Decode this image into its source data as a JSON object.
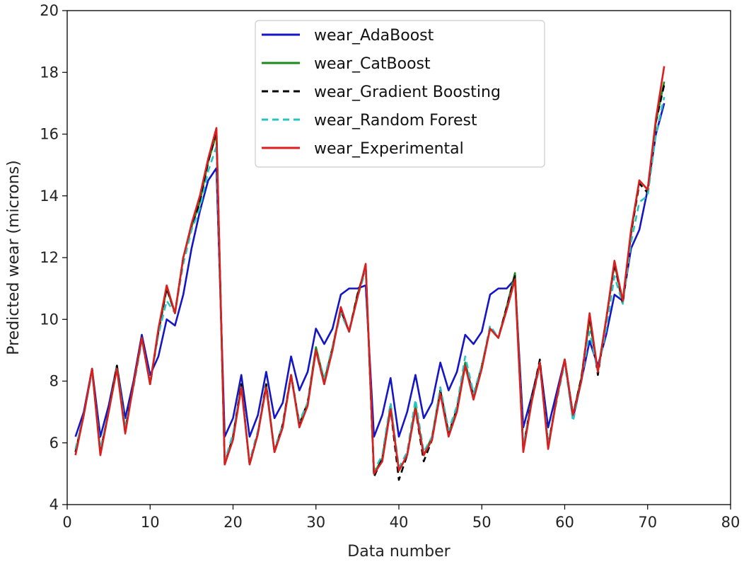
{
  "chart_data": {
    "type": "line",
    "title": "",
    "xlabel": "Data number",
    "ylabel": "Predicted wear (microns)",
    "xlim": [
      0,
      80
    ],
    "ylim": [
      4,
      20
    ],
    "xticks": [
      0,
      10,
      20,
      30,
      40,
      50,
      60,
      70,
      80
    ],
    "yticks": [
      4,
      6,
      8,
      10,
      12,
      14,
      16,
      18,
      20
    ],
    "grid": false,
    "legend_position": "top-center",
    "x": [
      1,
      2,
      3,
      4,
      5,
      6,
      7,
      8,
      9,
      10,
      11,
      12,
      13,
      14,
      15,
      16,
      17,
      18,
      19,
      20,
      21,
      22,
      23,
      24,
      25,
      26,
      27,
      28,
      29,
      30,
      31,
      32,
      33,
      34,
      35,
      36,
      37,
      38,
      39,
      40,
      41,
      42,
      43,
      44,
      45,
      46,
      47,
      48,
      49,
      50,
      51,
      52,
      53,
      54,
      55,
      56,
      57,
      58,
      59,
      60,
      61,
      62,
      63,
      64,
      65,
      66,
      67,
      68,
      69,
      70,
      71,
      72
    ],
    "series": [
      {
        "name": "wear_AdaBoost",
        "color": "#1414c8",
        "style": "solid",
        "values": [
          6.2,
          7.0,
          8.4,
          6.2,
          7.2,
          8.5,
          6.8,
          8.0,
          9.5,
          8.2,
          8.8,
          10.0,
          9.8,
          10.8,
          12.3,
          13.5,
          14.5,
          14.9,
          6.2,
          6.8,
          8.2,
          6.2,
          6.9,
          8.3,
          6.8,
          7.3,
          8.8,
          7.7,
          8.3,
          9.7,
          9.2,
          9.7,
          10.8,
          11.0,
          11.0,
          11.1,
          6.2,
          6.9,
          8.1,
          6.2,
          7.0,
          8.2,
          6.8,
          7.3,
          8.6,
          7.7,
          8.3,
          9.5,
          9.2,
          9.6,
          10.8,
          11.0,
          11.0,
          11.3,
          6.5,
          7.5,
          8.6,
          6.5,
          7.6,
          8.7,
          6.8,
          8.0,
          9.3,
          8.5,
          9.5,
          10.8,
          10.6,
          12.3,
          12.9,
          14.2,
          16.0,
          17.0
        ]
      },
      {
        "name": "wear_CatBoost",
        "color": "#1a8a1a",
        "style": "solid",
        "values": [
          5.7,
          6.9,
          8.4,
          5.7,
          7.0,
          8.5,
          6.4,
          7.9,
          9.4,
          7.9,
          9.6,
          11.0,
          10.2,
          12.0,
          13.0,
          13.8,
          15.1,
          16.0,
          5.3,
          6.2,
          7.9,
          5.3,
          6.3,
          7.9,
          5.7,
          6.6,
          8.2,
          6.6,
          7.3,
          9.1,
          8.0,
          9.1,
          10.3,
          9.6,
          10.8,
          11.7,
          5.0,
          5.5,
          7.2,
          5.1,
          5.6,
          7.2,
          5.6,
          6.2,
          7.7,
          6.3,
          7.1,
          8.6,
          7.5,
          8.5,
          9.7,
          9.4,
          10.4,
          11.5,
          5.8,
          7.4,
          8.6,
          5.9,
          7.4,
          8.7,
          6.9,
          8.1,
          10.0,
          8.3,
          10.0,
          11.8,
          10.6,
          12.8,
          14.5,
          14.2,
          16.4,
          17.7
        ]
      },
      {
        "name": "wear_Gradient Boosting",
        "color": "#000000",
        "style": "dashed",
        "values": [
          5.7,
          6.9,
          8.4,
          5.7,
          7.0,
          8.5,
          6.4,
          7.9,
          9.4,
          7.9,
          9.6,
          11.0,
          10.2,
          12.0,
          13.0,
          13.8,
          15.1,
          16.1,
          5.3,
          6.2,
          7.9,
          5.3,
          6.3,
          7.9,
          5.7,
          6.6,
          8.2,
          6.6,
          7.3,
          9.0,
          7.9,
          9.1,
          10.3,
          9.6,
          10.8,
          11.7,
          4.9,
          5.5,
          7.1,
          4.8,
          5.6,
          7.1,
          5.4,
          6.1,
          7.7,
          6.3,
          7.1,
          8.5,
          7.5,
          8.5,
          9.7,
          9.4,
          10.4,
          11.4,
          5.8,
          7.4,
          8.7,
          5.9,
          7.4,
          8.7,
          6.9,
          8.1,
          10.1,
          8.2,
          10.0,
          11.8,
          10.5,
          12.8,
          14.4,
          14.1,
          16.4,
          17.6
        ]
      },
      {
        "name": "wear_Random Forest",
        "color": "#2ac3c3",
        "style": "dashed",
        "values": [
          5.8,
          6.9,
          8.3,
          5.8,
          7.0,
          8.4,
          6.5,
          7.8,
          9.3,
          8.0,
          9.5,
          10.6,
          10.2,
          11.8,
          12.9,
          13.6,
          14.8,
          15.6,
          5.4,
          6.3,
          7.8,
          5.4,
          6.4,
          7.8,
          5.8,
          6.6,
          8.1,
          6.7,
          7.3,
          9.0,
          8.1,
          9.1,
          10.2,
          9.6,
          10.7,
          11.6,
          5.1,
          5.6,
          7.3,
          5.2,
          5.7,
          7.4,
          5.7,
          6.2,
          7.8,
          6.4,
          7.2,
          8.8,
          7.6,
          8.5,
          9.8,
          9.4,
          10.3,
          11.3,
          5.9,
          7.3,
          8.5,
          6.0,
          7.3,
          8.6,
          6.7,
          8.0,
          9.6,
          8.3,
          9.7,
          11.4,
          10.5,
          12.5,
          13.8,
          14.0,
          16.0,
          17.2
        ]
      },
      {
        "name": "wear_Experimental",
        "color": "#dc1e1e",
        "style": "solid",
        "values": [
          5.6,
          6.9,
          8.4,
          5.6,
          7.0,
          8.4,
          6.3,
          7.9,
          9.4,
          7.9,
          9.7,
          11.1,
          10.2,
          12.0,
          13.1,
          14.0,
          15.2,
          16.2,
          5.3,
          6.1,
          7.8,
          5.3,
          6.3,
          7.8,
          5.7,
          6.5,
          8.2,
          6.5,
          7.2,
          9.0,
          7.9,
          9.0,
          10.4,
          9.6,
          10.7,
          11.8,
          5.0,
          5.4,
          7.1,
          5.1,
          5.6,
          7.1,
          5.6,
          6.1,
          7.6,
          6.2,
          7.0,
          8.5,
          7.4,
          8.4,
          9.7,
          9.4,
          10.3,
          11.3,
          5.7,
          7.3,
          8.6,
          5.8,
          7.4,
          8.7,
          6.9,
          8.0,
          10.2,
          8.3,
          10.0,
          11.9,
          10.6,
          12.9,
          14.5,
          14.2,
          16.5,
          18.2
        ]
      }
    ]
  }
}
